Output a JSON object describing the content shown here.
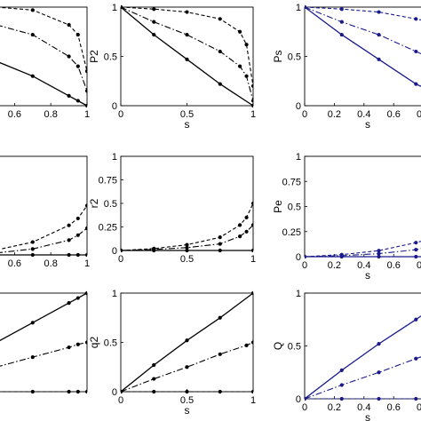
{
  "chart_data": [
    {
      "type": "line",
      "color": "#000000",
      "xlabel": "",
      "ylabel": "",
      "xlim": [
        0.5,
        1
      ],
      "ylim": [
        0,
        1
      ],
      "xticks": [
        "0.6",
        "0.8",
        "1"
      ],
      "yticks": [],
      "series": [
        {
          "style": "dashed",
          "x": [
            0.5,
            0.7,
            0.9,
            0.95,
            1
          ],
          "y": [
            1.0,
            0.97,
            0.82,
            0.72,
            0.35
          ]
        },
        {
          "style": "dashdot",
          "x": [
            0.5,
            0.7,
            0.9,
            0.95,
            1
          ],
          "y": [
            0.82,
            0.72,
            0.5,
            0.4,
            0.15
          ]
        },
        {
          "style": "solid",
          "x": [
            0.5,
            0.7,
            0.9,
            0.95,
            1
          ],
          "y": [
            0.45,
            0.3,
            0.1,
            0.05,
            0.0
          ]
        }
      ]
    },
    {
      "type": "line",
      "color": "#000000",
      "xlabel": "s",
      "ylabel": "P2",
      "xlim": [
        0,
        1
      ],
      "ylim": [
        0,
        1
      ],
      "xticks": [
        "0",
        "0.5",
        "1"
      ],
      "yticks": [
        "0",
        "0.5",
        "1"
      ],
      "series": [
        {
          "style": "dashed",
          "x": [
            0,
            0.25,
            0.5,
            0.75,
            0.9,
            0.95,
            1
          ],
          "y": [
            1.0,
            0.98,
            0.95,
            0.88,
            0.75,
            0.62,
            0.2
          ]
        },
        {
          "style": "dashdot",
          "x": [
            0,
            0.25,
            0.5,
            0.75,
            0.9,
            0.95,
            1
          ],
          "y": [
            1.0,
            0.85,
            0.72,
            0.55,
            0.4,
            0.3,
            0.05
          ]
        },
        {
          "style": "solid",
          "x": [
            0,
            0.25,
            0.5,
            0.75,
            1
          ],
          "y": [
            1.0,
            0.72,
            0.47,
            0.22,
            0.0
          ]
        }
      ]
    },
    {
      "type": "line",
      "color": "#1a1a8c",
      "xlabel": "s",
      "ylabel": "Ps",
      "xlim": [
        0,
        0.85
      ],
      "ylim": [
        0,
        1
      ],
      "xticks": [
        "0",
        "0.2",
        "0.4",
        "0.6",
        "0.8"
      ],
      "yticks": [
        "0",
        "0.5",
        "1"
      ],
      "series": [
        {
          "style": "dashed",
          "x": [
            0,
            0.25,
            0.5,
            0.75,
            0.85
          ],
          "y": [
            1.0,
            0.98,
            0.95,
            0.88,
            0.85
          ]
        },
        {
          "style": "dashdot",
          "x": [
            0,
            0.25,
            0.5,
            0.75,
            0.85
          ],
          "y": [
            1.0,
            0.85,
            0.72,
            0.55,
            0.48
          ]
        },
        {
          "style": "solid",
          "x": [
            0,
            0.25,
            0.5,
            0.75,
            0.85
          ],
          "y": [
            1.0,
            0.72,
            0.47,
            0.22,
            0.15
          ]
        }
      ]
    },
    {
      "type": "line",
      "color": "#000000",
      "xlabel": "",
      "ylabel": "",
      "xlim": [
        0.5,
        1
      ],
      "ylim": [
        0,
        1
      ],
      "xticks": [
        "0.6",
        "0.8",
        "1"
      ],
      "yticks": [],
      "series": [
        {
          "style": "dashed",
          "x": [
            0.5,
            0.7,
            0.9,
            0.95,
            1
          ],
          "y": [
            0.05,
            0.13,
            0.3,
            0.37,
            0.5
          ]
        },
        {
          "style": "dashdot",
          "x": [
            0.5,
            0.7,
            0.9,
            0.95,
            1
          ],
          "y": [
            0.02,
            0.06,
            0.15,
            0.2,
            0.27
          ]
        },
        {
          "style": "solid",
          "x": [
            0.5,
            0.7,
            0.9,
            0.95,
            1
          ],
          "y": [
            0.0,
            0.0,
            0.0,
            0.0,
            0.0
          ]
        }
      ]
    },
    {
      "type": "line",
      "color": "#000000",
      "xlabel": "",
      "ylabel": "r2",
      "xlim": [
        0,
        1
      ],
      "ylim": [
        0,
        1
      ],
      "xticks": [
        "0",
        "0.5",
        "1"
      ],
      "yticks": [
        "0",
        "0.25",
        "0.5",
        "0.75",
        "1"
      ],
      "series": [
        {
          "style": "dashed",
          "x": [
            0,
            0.25,
            0.5,
            0.75,
            0.9,
            0.95,
            1
          ],
          "y": [
            0.0,
            0.02,
            0.06,
            0.14,
            0.27,
            0.35,
            0.5
          ]
        },
        {
          "style": "dashdot",
          "x": [
            0,
            0.25,
            0.5,
            0.75,
            0.9,
            0.95,
            1
          ],
          "y": [
            0.0,
            0.01,
            0.03,
            0.07,
            0.15,
            0.2,
            0.27
          ]
        },
        {
          "style": "solid",
          "x": [
            0,
            0.25,
            0.5,
            0.75,
            1
          ],
          "y": [
            0.0,
            0.0,
            0.0,
            0.0,
            0.0
          ]
        }
      ]
    },
    {
      "type": "line",
      "color": "#1a1a8c",
      "xlabel": "s",
      "ylabel": "Pe",
      "xlim": [
        0,
        0.85
      ],
      "ylim": [
        0,
        1
      ],
      "xticks": [
        "0",
        "0.2",
        "0.4",
        "0.6",
        "0.8"
      ],
      "yticks": [
        "0",
        "0.25",
        "0.5",
        "0.75",
        "1"
      ],
      "series": [
        {
          "style": "dashed",
          "x": [
            0,
            0.25,
            0.5,
            0.75,
            0.85
          ],
          "y": [
            0.0,
            0.02,
            0.06,
            0.14,
            0.18
          ]
        },
        {
          "style": "dashdot",
          "x": [
            0,
            0.25,
            0.5,
            0.75,
            0.85
          ],
          "y": [
            0.0,
            0.01,
            0.03,
            0.07,
            0.1
          ]
        },
        {
          "style": "solid",
          "x": [
            0,
            0.25,
            0.5,
            0.75,
            0.85
          ],
          "y": [
            0.0,
            0.0,
            0.0,
            0.0,
            0.0
          ]
        }
      ]
    },
    {
      "type": "line",
      "color": "#000000",
      "xlabel": "",
      "ylabel": "",
      "xlim": [
        0.5,
        1
      ],
      "ylim": [
        0,
        1
      ],
      "xticks": [],
      "yticks": [],
      "series": [
        {
          "style": "solid",
          "x": [
            0.5,
            0.7,
            0.9,
            0.95,
            1
          ],
          "y": [
            0.5,
            0.7,
            0.9,
            0.95,
            1.0
          ]
        },
        {
          "style": "dashdot",
          "x": [
            0.5,
            0.7,
            0.9,
            0.95,
            1
          ],
          "y": [
            0.25,
            0.35,
            0.45,
            0.48,
            0.5
          ]
        },
        {
          "style": "dashed",
          "x": [
            0.5,
            0.7,
            0.9,
            0.95,
            1
          ],
          "y": [
            0.0,
            0.0,
            0.0,
            0.0,
            0.0
          ]
        }
      ]
    },
    {
      "type": "line",
      "color": "#000000",
      "xlabel": "s",
      "ylabel": "q2",
      "xlim": [
        0,
        1
      ],
      "ylim": [
        0,
        1
      ],
      "xticks": [
        "0",
        "0.5",
        "1"
      ],
      "yticks": [
        "0",
        "0.5",
        "1"
      ],
      "series": [
        {
          "style": "solid",
          "x": [
            0,
            0.25,
            0.5,
            0.75,
            1
          ],
          "y": [
            0.0,
            0.27,
            0.52,
            0.75,
            1.0
          ]
        },
        {
          "style": "dashdot",
          "x": [
            0,
            0.25,
            0.5,
            0.75,
            0.95,
            1
          ],
          "y": [
            0.0,
            0.13,
            0.25,
            0.38,
            0.47,
            0.5
          ]
        },
        {
          "style": "dashed",
          "x": [
            0,
            0.25,
            0.5,
            0.75,
            1
          ],
          "y": [
            0.0,
            0.0,
            0.0,
            0.0,
            0.0
          ]
        }
      ]
    },
    {
      "type": "line",
      "color": "#1a1a8c",
      "xlabel": "s",
      "ylabel": "Q",
      "xlim": [
        0,
        0.85
      ],
      "ylim": [
        0,
        1
      ],
      "xticks": [
        "0",
        "0.2",
        "0.4",
        "0.6",
        "0.8"
      ],
      "yticks": [
        "0",
        "0.5",
        "1"
      ],
      "series": [
        {
          "style": "solid",
          "x": [
            0,
            0.25,
            0.5,
            0.75,
            0.85
          ],
          "y": [
            0.0,
            0.27,
            0.52,
            0.75,
            0.85
          ]
        },
        {
          "style": "dashdot",
          "x": [
            0,
            0.25,
            0.5,
            0.75,
            0.85
          ],
          "y": [
            0.0,
            0.13,
            0.25,
            0.38,
            0.43
          ]
        },
        {
          "style": "dashed",
          "x": [
            0,
            0.25,
            0.5,
            0.75,
            0.85
          ],
          "y": [
            0.0,
            0.0,
            0.0,
            0.0,
            0.0
          ]
        }
      ]
    }
  ]
}
